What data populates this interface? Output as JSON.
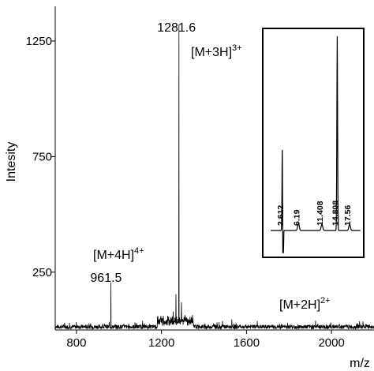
{
  "chart_data": [
    {
      "type": "line",
      "xlabel": "m/z",
      "ylabel": "Intesity",
      "xlim": [
        700,
        2200
      ],
      "ylim": [
        0,
        1400
      ],
      "x_ticks": [
        {
          "value": 800,
          "label": "800"
        },
        {
          "value": 1200,
          "label": "1200"
        },
        {
          "value": 1600,
          "label": "1600"
        },
        {
          "value": 2000,
          "label": "2000"
        }
      ],
      "y_ticks": [
        {
          "value": 250,
          "label": "250"
        },
        {
          "value": 750,
          "label": "750"
        },
        {
          "value": 1250,
          "label": "1250"
        }
      ],
      "noise_floor": 15,
      "peaks": [
        {
          "x": 1281.6,
          "y": 1320,
          "label": "1281.6"
        },
        {
          "x": 961.5,
          "y": 205,
          "label": "961.5"
        },
        {
          "x": 1268,
          "y": 155
        },
        {
          "x": 1294,
          "y": 120
        },
        {
          "x": 1255,
          "y": 80
        },
        {
          "x": 1310,
          "y": 65
        },
        {
          "x": 1925,
          "y": 40
        }
      ],
      "annotations": [
        {
          "base": "[M+3H]",
          "sup": "3+"
        },
        {
          "base": "[M+4H]",
          "sup": "4+"
        },
        {
          "base": "[M+2H]",
          "sup": "2+"
        }
      ]
    },
    {
      "type": "line",
      "title": "",
      "xlim": [
        0,
        20
      ],
      "ylim": [
        -1,
        10
      ],
      "peaks": [
        {
          "x": 2.612,
          "y": 4.2,
          "label": "2.612",
          "negative_dip": -0.7
        },
        {
          "x": 6.19,
          "y": 0.35,
          "label": "6.19"
        },
        {
          "x": 11.408,
          "y": 0.3,
          "label": "11.408"
        },
        {
          "x": 14.808,
          "y": 9.5,
          "label": "14.808"
        },
        {
          "x": 17.56,
          "y": 0.3,
          "label": "17.56"
        }
      ]
    }
  ]
}
